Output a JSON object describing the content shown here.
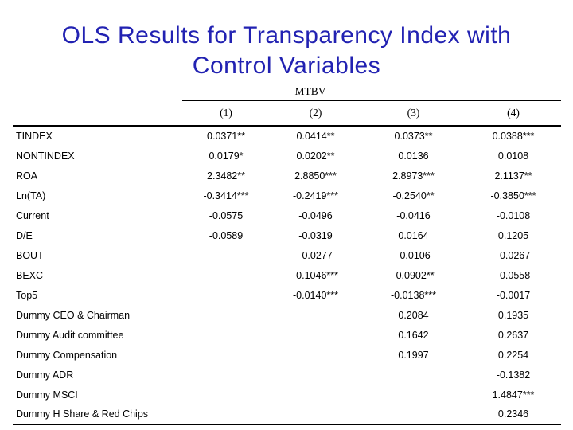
{
  "slide": {
    "title_line1": "OLS Results for Transparency Index with",
    "title_line2": "Control Variables",
    "title_color": "#2222b2",
    "rule_color": "#000000"
  },
  "table": {
    "group_header": "MTBV",
    "column_headers": [
      "(1)",
      "(2)",
      "(3)",
      "(4)"
    ],
    "rows": [
      {
        "label": "TINDEX",
        "values": [
          "0.0371**",
          "0.0414**",
          "0.0373**",
          "0.0388***"
        ]
      },
      {
        "label": "NONTINDEX",
        "values": [
          "0.0179*",
          "0.0202**",
          "0.0136",
          "0.0108"
        ]
      },
      {
        "label": "ROA",
        "values": [
          "2.3482**",
          "2.8850***",
          "2.8973***",
          "2.1137**"
        ]
      },
      {
        "label": "Ln(TA)",
        "values": [
          "-0.3414***",
          "-0.2419***",
          "-0.2540**",
          "-0.3850***"
        ]
      },
      {
        "label": "Current",
        "values": [
          "-0.0575",
          "-0.0496",
          "-0.0416",
          "-0.0108"
        ]
      },
      {
        "label": "D/E",
        "values": [
          "-0.0589",
          "-0.0319",
          "0.0164",
          "0.1205"
        ]
      },
      {
        "label": "BOUT",
        "values": [
          "",
          "-0.0277",
          "-0.0106",
          "-0.0267"
        ]
      },
      {
        "label": "BEXC",
        "values": [
          "",
          "-0.1046***",
          "-0.0902**",
          "-0.0558"
        ]
      },
      {
        "label": "Top5",
        "values": [
          "",
          "-0.0140***",
          "-0.0138***",
          "-0.0017"
        ]
      },
      {
        "label": "Dummy CEO & Chairman",
        "values": [
          "",
          "",
          "0.2084",
          "0.1935"
        ]
      },
      {
        "label": "Dummy Audit committee",
        "values": [
          "",
          "",
          "0.1642",
          "0.2637"
        ]
      },
      {
        "label": "Dummy Compensation",
        "values": [
          "",
          "",
          "0.1997",
          "0.2254"
        ]
      },
      {
        "label": "Dummy ADR",
        "values": [
          "",
          "",
          "",
          "-0.1382"
        ]
      },
      {
        "label": "Dummy MSCI",
        "values": [
          "",
          "",
          "",
          "1.4847***"
        ]
      },
      {
        "label": "Dummy H Share & Red Chips",
        "values": [
          "",
          "",
          "",
          "0.2346"
        ]
      }
    ]
  }
}
